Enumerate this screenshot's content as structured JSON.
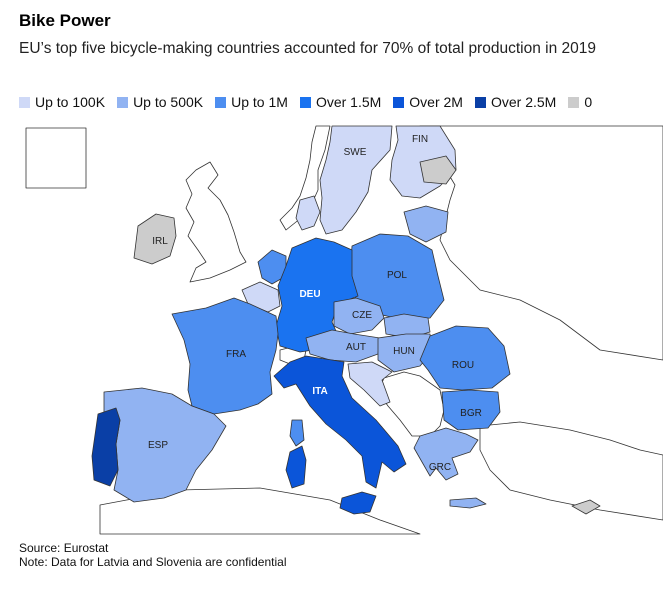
{
  "title": "Bike Power",
  "subtitle": "EU’s top five bicycle-making countries accounted for 70% of total production in 2019",
  "legend": [
    {
      "label": "Up to 100K",
      "color": "#cfd9f7"
    },
    {
      "label": "Up to 500K",
      "color": "#91b3f2"
    },
    {
      "label": "Up to 1M",
      "color": "#4d8ef0"
    },
    {
      "label": "Over 1.5M",
      "color": "#1a73f0"
    },
    {
      "label": "Over 2M",
      "color": "#0b55d9"
    },
    {
      "label": "Over 2.5M",
      "color": "#0a3fa6"
    },
    {
      "label": "0",
      "color": "#cccccc"
    }
  ],
  "countries": {
    "fin": {
      "label": "FIN",
      "color": "#cfd9f7"
    },
    "swe": {
      "label": "SWE",
      "color": "#cfd9f7"
    },
    "irl": {
      "label": "IRL",
      "color": "#cccccc"
    },
    "pol": {
      "label": "POL",
      "color": "#4d8ef0"
    },
    "deu": {
      "label": "DEU",
      "color": "#1a73f0"
    },
    "cze": {
      "label": "CZE",
      "color": "#91b3f2"
    },
    "aut": {
      "label": "AUT",
      "color": "#91b3f2"
    },
    "hun": {
      "label": "HUN",
      "color": "#91b3f2"
    },
    "fra": {
      "label": "FRA",
      "color": "#4d8ef0"
    },
    "rou": {
      "label": "ROU",
      "color": "#4d8ef0"
    },
    "ita": {
      "label": "ITA",
      "color": "#0b55d9"
    },
    "bgr": {
      "label": "BGR",
      "color": "#4d8ef0"
    },
    "esp": {
      "label": "ESP",
      "color": "#91b3f2"
    },
    "grc": {
      "label": "GRC",
      "color": "#91b3f2"
    },
    "prt": {
      "color": "#0a3fa6"
    },
    "nld": {
      "color": "#4d8ef0"
    },
    "bel": {
      "color": "#cfd9f7"
    },
    "dnk": {
      "color": "#cfd9f7"
    },
    "ltu": {
      "color": "#91b3f2"
    },
    "svk": {
      "color": "#91b3f2"
    },
    "hrv": {
      "color": "#cfd9f7"
    },
    "est": {
      "color": "#cccccc"
    },
    "cyp": {
      "color": "#cccccc"
    },
    "nonEU": {
      "color": "#ffffff"
    }
  },
  "footer": {
    "source": "Source: Eurostat",
    "note": "Note: Data for Latvia and Slovenia are confidential"
  }
}
